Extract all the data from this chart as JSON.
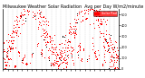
{
  "title": "Milwaukee Weather Solar Radiation  Avg per Day W/m2/minute",
  "title_fontsize": 3.5,
  "dot_color": "red",
  "dot_color2": "black",
  "dot_size": 1.0,
  "ylim": [
    0,
    550
  ],
  "xlim": [
    0,
    730
  ],
  "background_color": "#ffffff",
  "grid_color": "#bbbbbb",
  "legend_label": "Solar Rad",
  "legend_color": "red",
  "ytick_labels": [
    "0",
    "100",
    "200",
    "300",
    "400",
    "500"
  ],
  "ytick_vals": [
    0,
    100,
    200,
    300,
    400,
    500
  ]
}
